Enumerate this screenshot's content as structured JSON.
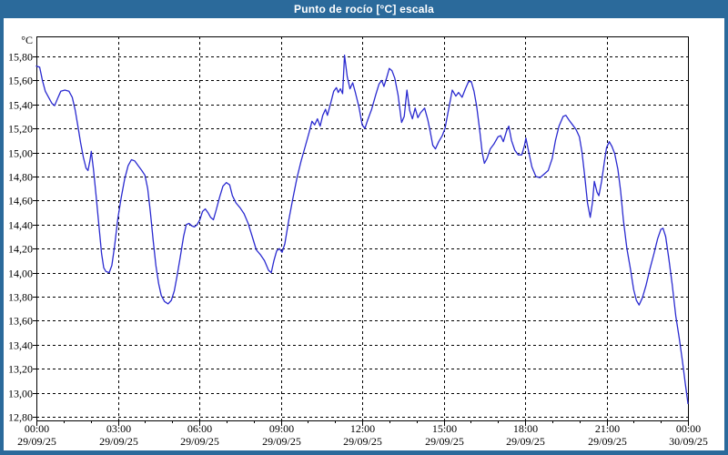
{
  "window": {
    "title": "Punto de rocío [°C] escala"
  },
  "colors": {
    "titlebar": "#2b6a9b",
    "frame": "#2b6a9b",
    "background": "#ffffff",
    "grid": "#000000",
    "axis": "#000000",
    "text": "#000000",
    "line": "#2a2ad0"
  },
  "chart_data": {
    "type": "line",
    "title": "Punto de rocío [°C] escala",
    "ylabel": "°C",
    "y_unit_label": "°C",
    "ylim": [
      12.8,
      15.8
    ],
    "y_tick_step": 0.2,
    "y_tick_labels": [
      "15,80",
      "15,60",
      "15,40",
      "15,20",
      "15,00",
      "14,80",
      "14,60",
      "14,40",
      "14,20",
      "14,00",
      "13,80",
      "13,60",
      "13,40",
      "13,20",
      "13,00",
      "12,80"
    ],
    "xlim_hours": [
      0,
      24
    ],
    "x_minor_tick_hours": 1,
    "x_major_tick_hours": 3,
    "grid": "dashed",
    "legend_position": "none",
    "x_ticks": [
      {
        "hour": 0,
        "time": "00:00",
        "date": "29/09/25"
      },
      {
        "hour": 3,
        "time": "03:00",
        "date": "29/09/25"
      },
      {
        "hour": 6,
        "time": "06:00",
        "date": "29/09/25"
      },
      {
        "hour": 9,
        "time": "09:00",
        "date": "29/09/25"
      },
      {
        "hour": 12,
        "time": "12:00",
        "date": "29/09/25"
      },
      {
        "hour": 15,
        "time": "15:00",
        "date": "29/09/25"
      },
      {
        "hour": 18,
        "time": "18:00",
        "date": "29/09/25"
      },
      {
        "hour": 21,
        "time": "21:00",
        "date": "29/09/25"
      },
      {
        "hour": 24,
        "time": "00:00",
        "date": "30/09/25"
      }
    ],
    "series": [
      {
        "name": "Punto de rocío",
        "points": [
          [
            0,
            15.72
          ],
          [
            0.12,
            15.71
          ],
          [
            0.22,
            15.6
          ],
          [
            0.33,
            15.51
          ],
          [
            0.45,
            15.46
          ],
          [
            0.57,
            15.41
          ],
          [
            0.67,
            15.39
          ],
          [
            0.78,
            15.45
          ],
          [
            0.9,
            15.51
          ],
          [
            1.05,
            15.52
          ],
          [
            1.2,
            15.51
          ],
          [
            1.32,
            15.46
          ],
          [
            1.43,
            15.35
          ],
          [
            1.53,
            15.22
          ],
          [
            1.63,
            15.08
          ],
          [
            1.73,
            14.96
          ],
          [
            1.83,
            14.87
          ],
          [
            1.9,
            14.85
          ],
          [
            1.97,
            14.93
          ],
          [
            2.02,
            15.01
          ],
          [
            2.1,
            14.86
          ],
          [
            2.2,
            14.64
          ],
          [
            2.3,
            14.4
          ],
          [
            2.4,
            14.16
          ],
          [
            2.48,
            14.04
          ],
          [
            2.56,
            14.01
          ],
          [
            2.68,
            14.0
          ],
          [
            2.78,
            14.06
          ],
          [
            2.88,
            14.22
          ],
          [
            3.0,
            14.45
          ],
          [
            3.12,
            14.62
          ],
          [
            3.25,
            14.78
          ],
          [
            3.38,
            14.89
          ],
          [
            3.5,
            14.94
          ],
          [
            3.62,
            14.93
          ],
          [
            3.75,
            14.89
          ],
          [
            3.88,
            14.85
          ],
          [
            4.0,
            14.81
          ],
          [
            4.1,
            14.7
          ],
          [
            4.2,
            14.5
          ],
          [
            4.3,
            14.27
          ],
          [
            4.4,
            14.06
          ],
          [
            4.5,
            13.91
          ],
          [
            4.6,
            13.81
          ],
          [
            4.72,
            13.76
          ],
          [
            4.85,
            13.74
          ],
          [
            4.97,
            13.77
          ],
          [
            5.08,
            13.85
          ],
          [
            5.18,
            13.97
          ],
          [
            5.3,
            14.13
          ],
          [
            5.42,
            14.3
          ],
          [
            5.52,
            14.4
          ],
          [
            5.62,
            14.41
          ],
          [
            5.72,
            14.39
          ],
          [
            5.82,
            14.38
          ],
          [
            5.92,
            14.4
          ],
          [
            6.02,
            14.44
          ],
          [
            6.12,
            14.51
          ],
          [
            6.22,
            14.53
          ],
          [
            6.32,
            14.5
          ],
          [
            6.42,
            14.46
          ],
          [
            6.52,
            14.44
          ],
          [
            6.62,
            14.52
          ],
          [
            6.75,
            14.63
          ],
          [
            6.87,
            14.72
          ],
          [
            7.0,
            14.75
          ],
          [
            7.12,
            14.73
          ],
          [
            7.22,
            14.64
          ],
          [
            7.35,
            14.58
          ],
          [
            7.5,
            14.54
          ],
          [
            7.65,
            14.49
          ],
          [
            7.8,
            14.41
          ],
          [
            7.95,
            14.3
          ],
          [
            8.1,
            14.19
          ],
          [
            8.25,
            14.15
          ],
          [
            8.4,
            14.1
          ],
          [
            8.55,
            14.02
          ],
          [
            8.65,
            14.0
          ],
          [
            8.75,
            14.1
          ],
          [
            8.85,
            14.18
          ],
          [
            8.95,
            14.2
          ],
          [
            9.05,
            14.17
          ],
          [
            9.15,
            14.24
          ],
          [
            9.3,
            14.44
          ],
          [
            9.45,
            14.62
          ],
          [
            9.6,
            14.79
          ],
          [
            9.75,
            14.93
          ],
          [
            9.9,
            15.05
          ],
          [
            10.05,
            15.17
          ],
          [
            10.15,
            15.26
          ],
          [
            10.25,
            15.23
          ],
          [
            10.35,
            15.28
          ],
          [
            10.45,
            15.22
          ],
          [
            10.55,
            15.31
          ],
          [
            10.65,
            15.36
          ],
          [
            10.72,
            15.31
          ],
          [
            10.85,
            15.42
          ],
          [
            10.95,
            15.51
          ],
          [
            11.05,
            15.54
          ],
          [
            11.12,
            15.5
          ],
          [
            11.2,
            15.53
          ],
          [
            11.28,
            15.49
          ],
          [
            11.35,
            15.81
          ],
          [
            11.45,
            15.63
          ],
          [
            11.55,
            15.53
          ],
          [
            11.65,
            15.58
          ],
          [
            11.75,
            15.5
          ],
          [
            11.88,
            15.38
          ],
          [
            12.0,
            15.23
          ],
          [
            12.1,
            15.2
          ],
          [
            12.2,
            15.27
          ],
          [
            12.35,
            15.36
          ],
          [
            12.5,
            15.48
          ],
          [
            12.62,
            15.57
          ],
          [
            12.72,
            15.6
          ],
          [
            12.8,
            15.55
          ],
          [
            12.9,
            15.62
          ],
          [
            13.0,
            15.7
          ],
          [
            13.1,
            15.68
          ],
          [
            13.2,
            15.62
          ],
          [
            13.32,
            15.48
          ],
          [
            13.45,
            15.25
          ],
          [
            13.55,
            15.3
          ],
          [
            13.65,
            15.52
          ],
          [
            13.75,
            15.35
          ],
          [
            13.85,
            15.28
          ],
          [
            13.95,
            15.37
          ],
          [
            14.05,
            15.29
          ],
          [
            14.15,
            15.33
          ],
          [
            14.3,
            15.37
          ],
          [
            14.42,
            15.27
          ],
          [
            14.5,
            15.18
          ],
          [
            14.6,
            15.06
          ],
          [
            14.7,
            15.03
          ],
          [
            14.82,
            15.09
          ],
          [
            14.95,
            15.14
          ],
          [
            15.05,
            15.2
          ],
          [
            15.2,
            15.38
          ],
          [
            15.32,
            15.52
          ],
          [
            15.45,
            15.47
          ],
          [
            15.55,
            15.5
          ],
          [
            15.68,
            15.46
          ],
          [
            15.8,
            15.53
          ],
          [
            15.92,
            15.59
          ],
          [
            16.02,
            15.59
          ],
          [
            16.12,
            15.51
          ],
          [
            16.22,
            15.38
          ],
          [
            16.32,
            15.2
          ],
          [
            16.42,
            15.0
          ],
          [
            16.5,
            14.91
          ],
          [
            16.6,
            14.95
          ],
          [
            16.72,
            15.03
          ],
          [
            16.85,
            15.07
          ],
          [
            17.0,
            15.13
          ],
          [
            17.1,
            15.14
          ],
          [
            17.2,
            15.09
          ],
          [
            17.32,
            15.18
          ],
          [
            17.4,
            15.22
          ],
          [
            17.5,
            15.1
          ],
          [
            17.62,
            15.02
          ],
          [
            17.75,
            14.98
          ],
          [
            17.88,
            14.98
          ],
          [
            17.98,
            15.06
          ],
          [
            18.03,
            15.12
          ],
          [
            18.12,
            15.02
          ],
          [
            18.25,
            14.88
          ],
          [
            18.4,
            14.8
          ],
          [
            18.55,
            14.79
          ],
          [
            18.7,
            14.82
          ],
          [
            18.85,
            14.85
          ],
          [
            19.0,
            14.95
          ],
          [
            19.12,
            15.1
          ],
          [
            19.25,
            15.22
          ],
          [
            19.4,
            15.3
          ],
          [
            19.5,
            15.31
          ],
          [
            19.62,
            15.27
          ],
          [
            19.75,
            15.23
          ],
          [
            19.88,
            15.19
          ],
          [
            20.0,
            15.13
          ],
          [
            20.1,
            15.0
          ],
          [
            20.2,
            14.8
          ],
          [
            20.3,
            14.58
          ],
          [
            20.4,
            14.46
          ],
          [
            20.48,
            14.58
          ],
          [
            20.55,
            14.76
          ],
          [
            20.65,
            14.67
          ],
          [
            20.72,
            14.64
          ],
          [
            20.82,
            14.76
          ],
          [
            20.92,
            14.92
          ],
          [
            21.0,
            15.04
          ],
          [
            21.1,
            15.09
          ],
          [
            21.2,
            15.05
          ],
          [
            21.3,
            14.99
          ],
          [
            21.42,
            14.86
          ],
          [
            21.52,
            14.68
          ],
          [
            21.62,
            14.44
          ],
          [
            21.75,
            14.2
          ],
          [
            21.88,
            14.03
          ],
          [
            22.0,
            13.86
          ],
          [
            22.1,
            13.77
          ],
          [
            22.2,
            13.73
          ],
          [
            22.32,
            13.79
          ],
          [
            22.45,
            13.89
          ],
          [
            22.6,
            14.03
          ],
          [
            22.75,
            14.16
          ],
          [
            22.88,
            14.28
          ],
          [
            23.0,
            14.36
          ],
          [
            23.08,
            14.37
          ],
          [
            23.18,
            14.3
          ],
          [
            23.3,
            14.11
          ],
          [
            23.42,
            13.9
          ],
          [
            23.55,
            13.64
          ],
          [
            23.68,
            13.45
          ],
          [
            23.8,
            13.26
          ],
          [
            23.9,
            13.08
          ],
          [
            24.0,
            12.91
          ]
        ]
      }
    ]
  }
}
